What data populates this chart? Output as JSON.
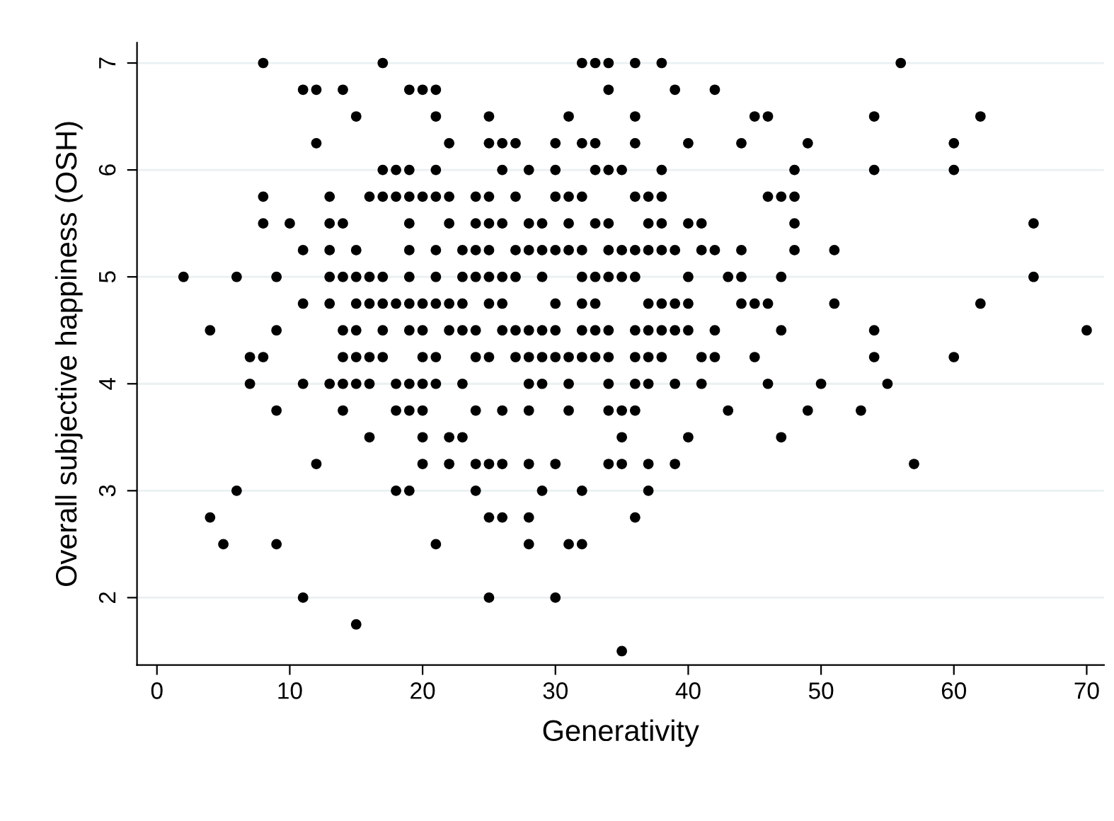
{
  "chart_data": {
    "type": "scatter",
    "xlabel": "Generativity",
    "ylabel": "Overall subjective happiness (OSH)",
    "xlim": [
      -1.5,
      71.3
    ],
    "ylim": [
      1.37,
      7.19
    ],
    "xticks": [
      0,
      10,
      20,
      30,
      40,
      50,
      60,
      70
    ],
    "yticks": [
      2,
      3,
      4,
      5,
      6,
      7
    ],
    "grid": "y",
    "marker": "circle",
    "series": [
      {
        "color": "#000000",
        "x": [
          8,
          17,
          32,
          33,
          34,
          36,
          38,
          56,
          11,
          12,
          14,
          19,
          20,
          21,
          34,
          39,
          42,
          15,
          21,
          25,
          31,
          36,
          45,
          46,
          54,
          62,
          12,
          22,
          25,
          26,
          27,
          30,
          32,
          33,
          36,
          40,
          44,
          49,
          60,
          17,
          18,
          19,
          21,
          26,
          28,
          30,
          33,
          34,
          35,
          38,
          48,
          54,
          60,
          8,
          13,
          16,
          17,
          18,
          19,
          20,
          21,
          22,
          24,
          25,
          27,
          30,
          31,
          32,
          36,
          37,
          38,
          46,
          47,
          48,
          8,
          10,
          13,
          14,
          19,
          22,
          24,
          25,
          26,
          28,
          29,
          31,
          33,
          34,
          37,
          38,
          40,
          41,
          48,
          66,
          11,
          13,
          15,
          19,
          21,
          23,
          24,
          25,
          27,
          28,
          29,
          30,
          31,
          32,
          34,
          35,
          36,
          37,
          38,
          39,
          41,
          42,
          44,
          48,
          51,
          2,
          6,
          9,
          13,
          14,
          15,
          16,
          17,
          19,
          21,
          23,
          24,
          25,
          26,
          27,
          29,
          32,
          33,
          34,
          35,
          36,
          40,
          43,
          44,
          47,
          66,
          11,
          13,
          15,
          16,
          17,
          18,
          19,
          20,
          21,
          22,
          23,
          25,
          26,
          30,
          32,
          33,
          37,
          38,
          39,
          40,
          44,
          45,
          46,
          51,
          62,
          4,
          9,
          14,
          15,
          17,
          19,
          20,
          22,
          23,
          24,
          26,
          27,
          28,
          29,
          30,
          32,
          33,
          34,
          36,
          37,
          38,
          39,
          40,
          42,
          47,
          54,
          70,
          7,
          8,
          14,
          15,
          16,
          17,
          20,
          21,
          24,
          25,
          27,
          28,
          29,
          30,
          31,
          32,
          33,
          34,
          36,
          37,
          38,
          41,
          42,
          45,
          54,
          60,
          7,
          11,
          13,
          14,
          15,
          16,
          18,
          19,
          20,
          21,
          23,
          28,
          29,
          31,
          34,
          36,
          37,
          39,
          41,
          46,
          50,
          55,
          9,
          14,
          18,
          19,
          20,
          24,
          26,
          28,
          31,
          34,
          35,
          36,
          43,
          49,
          53,
          16,
          20,
          22,
          23,
          35,
          40,
          47,
          12,
          20,
          22,
          24,
          25,
          26,
          28,
          30,
          34,
          35,
          37,
          39,
          57,
          6,
          18,
          19,
          24,
          29,
          32,
          37,
          4,
          25,
          26,
          28,
          36,
          5,
          9,
          21,
          28,
          31,
          32,
          11,
          25,
          30,
          15,
          35
        ],
        "values": [
          7,
          7,
          7,
          7,
          7,
          7,
          7,
          7,
          6.75,
          6.75,
          6.75,
          6.75,
          6.75,
          6.75,
          6.75,
          6.75,
          6.75,
          6.5,
          6.5,
          6.5,
          6.5,
          6.5,
          6.5,
          6.5,
          6.5,
          6.5,
          6.25,
          6.25,
          6.25,
          6.25,
          6.25,
          6.25,
          6.25,
          6.25,
          6.25,
          6.25,
          6.25,
          6.25,
          6.25,
          6,
          6,
          6,
          6,
          6,
          6,
          6,
          6,
          6,
          6,
          6,
          6,
          6,
          6,
          5.75,
          5.75,
          5.75,
          5.75,
          5.75,
          5.75,
          5.75,
          5.75,
          5.75,
          5.75,
          5.75,
          5.75,
          5.75,
          5.75,
          5.75,
          5.75,
          5.75,
          5.75,
          5.75,
          5.75,
          5.75,
          5.5,
          5.5,
          5.5,
          5.5,
          5.5,
          5.5,
          5.5,
          5.5,
          5.5,
          5.5,
          5.5,
          5.5,
          5.5,
          5.5,
          5.5,
          5.5,
          5.5,
          5.5,
          5.5,
          5.5,
          5.25,
          5.25,
          5.25,
          5.25,
          5.25,
          5.25,
          5.25,
          5.25,
          5.25,
          5.25,
          5.25,
          5.25,
          5.25,
          5.25,
          5.25,
          5.25,
          5.25,
          5.25,
          5.25,
          5.25,
          5.25,
          5.25,
          5.25,
          5.25,
          5.25,
          5,
          5,
          5,
          5,
          5,
          5,
          5,
          5,
          5,
          5,
          5,
          5,
          5,
          5,
          5,
          5,
          5,
          5,
          5,
          5,
          5,
          5,
          5,
          5,
          5,
          5,
          4.75,
          4.75,
          4.75,
          4.75,
          4.75,
          4.75,
          4.75,
          4.75,
          4.75,
          4.75,
          4.75,
          4.75,
          4.75,
          4.75,
          4.75,
          4.75,
          4.75,
          4.75,
          4.75,
          4.75,
          4.75,
          4.75,
          4.75,
          4.75,
          4.75,
          4.5,
          4.5,
          4.5,
          4.5,
          4.5,
          4.5,
          4.5,
          4.5,
          4.5,
          4.5,
          4.5,
          4.5,
          4.5,
          4.5,
          4.5,
          4.5,
          4.5,
          4.5,
          4.5,
          4.5,
          4.5,
          4.5,
          4.5,
          4.5,
          4.5,
          4.5,
          4.5,
          4.25,
          4.25,
          4.25,
          4.25,
          4.25,
          4.25,
          4.25,
          4.25,
          4.25,
          4.25,
          4.25,
          4.25,
          4.25,
          4.25,
          4.25,
          4.25,
          4.25,
          4.25,
          4.25,
          4.25,
          4.25,
          4.25,
          4.25,
          4.25,
          4.25,
          4.25,
          4,
          4,
          4,
          4,
          4,
          4,
          4,
          4,
          4,
          4,
          4,
          4,
          4,
          4,
          4,
          4,
          4,
          4,
          4,
          4,
          4,
          4,
          3.75,
          3.75,
          3.75,
          3.75,
          3.75,
          3.75,
          3.75,
          3.75,
          3.75,
          3.75,
          3.75,
          3.75,
          3.75,
          3.75,
          3.75,
          3.5,
          3.5,
          3.5,
          3.5,
          3.5,
          3.5,
          3.5,
          3.25,
          3.25,
          3.25,
          3.25,
          3.25,
          3.25,
          3.25,
          3.25,
          3.25,
          3.25,
          3.25,
          3.25,
          3.25,
          3,
          3,
          3,
          3,
          3,
          3,
          3,
          2.75,
          2.75,
          2.75,
          2.75,
          2.75,
          2.5,
          2.5,
          2.5,
          2.5,
          2.5,
          2.5,
          2,
          2,
          2,
          1.75,
          1.5
        ]
      }
    ]
  }
}
